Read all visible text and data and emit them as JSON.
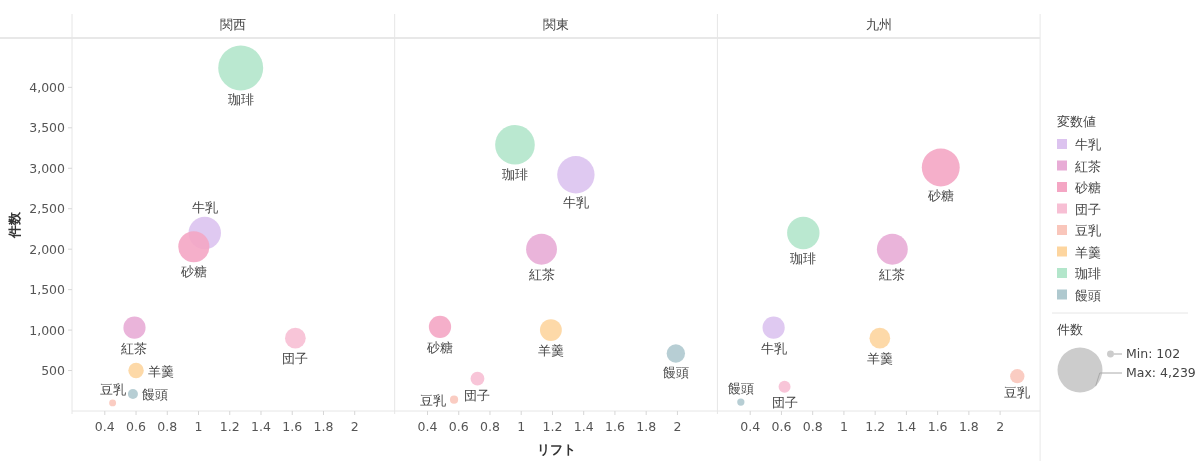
{
  "chart_data": [
    {
      "type": "bubble",
      "title": "関西",
      "ylabel": "件数",
      "xlim": [
        0.19,
        2.256
      ],
      "ylim": [
        0,
        4610
      ],
      "xticks": [
        0.4,
        0.6,
        0.8,
        1,
        1.2,
        1.4,
        1.6,
        1.8,
        2
      ],
      "yticks": [
        {
          "value": 500,
          "label": "500"
        },
        {
          "value": 1000,
          "label": "1,000"
        },
        {
          "value": 1500,
          "label": "1,500"
        },
        {
          "value": 2000,
          "label": "2,000"
        },
        {
          "value": 2500,
          "label": "2,500"
        },
        {
          "value": 3000,
          "label": "3,000"
        },
        {
          "value": 3500,
          "label": "3,500"
        },
        {
          "value": 4000,
          "label": "4,000"
        }
      ],
      "series": [
        {
          "name": "牛乳",
          "color": "#dcc3ef",
          "x": [
            1.04
          ],
          "values": [
            2200
          ]
        },
        {
          "name": "紅茶",
          "color": "#e8acd6",
          "x": [
            0.59
          ],
          "values": [
            1030
          ]
        },
        {
          "name": "砂糖",
          "color": "#f4a6c4",
          "x": [
            0.97
          ],
          "values": [
            2030
          ]
        },
        {
          "name": "団子",
          "color": "#f7bfd4",
          "x": [
            1.62
          ],
          "values": [
            900
          ]
        },
        {
          "name": "豆乳",
          "color": "#f9c6bb",
          "x": [
            0.45
          ],
          "values": [
            100
          ]
        },
        {
          "name": "羊羹",
          "color": "#fdd59f",
          "x": [
            0.6
          ],
          "values": [
            500
          ]
        },
        {
          "name": "珈琲",
          "color": "#b3e6cb",
          "x": [
            1.27
          ],
          "values": [
            4240
          ]
        },
        {
          "name": "饅頭",
          "color": "#afc9cf",
          "x": [
            0.58
          ],
          "values": [
            210
          ]
        }
      ]
    },
    {
      "type": "bubble",
      "title": "関東",
      "xlabel": "リフト",
      "tick_labels": "x",
      "xlim": [
        0.19,
        2.256
      ],
      "ylim": [
        0,
        4610
      ],
      "xticks": [
        0.4,
        0.6,
        0.8,
        1,
        1.2,
        1.4,
        1.6,
        1.8,
        2
      ],
      "series": [
        {
          "name": "牛乳",
          "color": "#dcc3ef",
          "x": [
            1.35
          ],
          "values": [
            2920
          ]
        },
        {
          "name": "紅茶",
          "color": "#e8acd6",
          "x": [
            1.13
          ],
          "values": [
            2000
          ]
        },
        {
          "name": "砂糖",
          "color": "#f4a6c4",
          "x": [
            0.48
          ],
          "values": [
            1040
          ]
        },
        {
          "name": "団子",
          "color": "#f7bfd4",
          "x": [
            0.72
          ],
          "values": [
            400
          ]
        },
        {
          "name": "豆乳",
          "color": "#f9c6bb",
          "x": [
            0.57
          ],
          "values": [
            140
          ]
        },
        {
          "name": "羊羹",
          "color": "#fdd59f",
          "x": [
            1.19
          ],
          "values": [
            1000
          ]
        },
        {
          "name": "珈琲",
          "color": "#b3e6cb",
          "x": [
            0.96
          ],
          "values": [
            3290
          ]
        },
        {
          "name": "饅頭",
          "color": "#afc9cf",
          "x": [
            1.99
          ],
          "values": [
            710
          ]
        }
      ]
    },
    {
      "type": "bubble",
      "title": "九州",
      "tick_labels": "x",
      "xlim": [
        0.19,
        2.256
      ],
      "ylim": [
        0,
        4610
      ],
      "xticks": [
        0.4,
        0.6,
        0.8,
        1,
        1.2,
        1.4,
        1.6,
        1.8,
        2
      ],
      "legend": "right",
      "legend_title": "変数値",
      "annotations": [
        "件数"
      ],
      "size_legend": [
        {
          "value": 102,
          "label": "Min: 102"
        },
        {
          "value": 4239,
          "label": "Max: 4,239"
        }
      ],
      "series": [
        {
          "name": "牛乳",
          "color": "#dcc3ef",
          "x": [
            0.55
          ],
          "values": [
            1030
          ],
          "sizes": [
            1030
          ]
        },
        {
          "name": "紅茶",
          "color": "#e8acd6",
          "x": [
            1.31
          ],
          "values": [
            2000
          ],
          "sizes": [
            2000
          ]
        },
        {
          "name": "砂糖",
          "color": "#f4a6c4",
          "x": [
            1.62
          ],
          "values": [
            3010
          ],
          "sizes": [
            3010
          ]
        },
        {
          "name": "団子",
          "color": "#f7bfd4",
          "x": [
            0.62
          ],
          "values": [
            300
          ],
          "sizes": [
            300
          ]
        },
        {
          "name": "豆乳",
          "color": "#f9c6bb",
          "x": [
            2.11
          ],
          "values": [
            430
          ],
          "sizes": [
            430
          ]
        },
        {
          "name": "羊羹",
          "color": "#fdd59f",
          "x": [
            1.23
          ],
          "values": [
            900
          ],
          "sizes": [
            900
          ]
        },
        {
          "name": "珈琲",
          "color": "#b3e6cb",
          "x": [
            0.74
          ],
          "values": [
            2200
          ],
          "sizes": [
            2200
          ]
        },
        {
          "name": "饅頭",
          "color": "#afc9cf",
          "x": [
            0.34
          ],
          "values": [
            110
          ],
          "sizes": [
            110
          ]
        }
      ]
    }
  ]
}
